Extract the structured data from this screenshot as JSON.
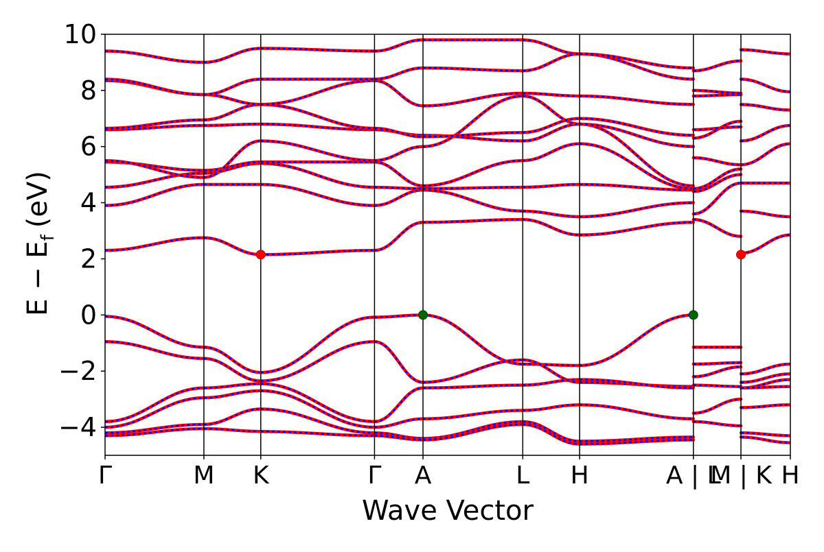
{
  "chart_data": {
    "type": "line",
    "xlabel": "Wave Vector",
    "ylabel_main": "E − E",
    "ylabel_sub": "f",
    "ylabel_unit": "(eV)",
    "ylim": [
      -5,
      10
    ],
    "yticks": [
      {
        "value": -4,
        "label": "−4"
      },
      {
        "value": -2,
        "label": "−2"
      },
      {
        "value": 0,
        "label": "0"
      },
      {
        "value": 2,
        "label": "2"
      },
      {
        "value": 4,
        "label": "4"
      },
      {
        "value": 6,
        "label": "6"
      },
      {
        "value": 8,
        "label": "8"
      },
      {
        "value": 10,
        "label": "10"
      }
    ],
    "xlim": [
      0,
      7.35
    ],
    "kpoints": [
      {
        "label": "Γ",
        "x": 0
      },
      {
        "label": "M",
        "x": 1.06
      },
      {
        "label": "K",
        "x": 1.67
      },
      {
        "label": "Γ",
        "x": 2.89
      },
      {
        "label": "A",
        "x": 3.41
      },
      {
        "label": "L",
        "x": 4.48
      },
      {
        "label": "H",
        "x": 5.09
      },
      {
        "label": "A | L",
        "x": 6.31
      },
      {
        "label": "M | K",
        "x": 6.82
      },
      {
        "label": "H",
        "x": 7.35
      }
    ],
    "segments": [
      {
        "x0": 0,
        "x1": 1.06,
        "bands": [
          [
            -0.05,
            -1.15
          ],
          [
            -0.95,
            -1.55
          ],
          [
            -3.8,
            -2.6
          ],
          [
            -4.0,
            -2.95
          ],
          [
            -4.2,
            -3.9
          ],
          [
            -4.3,
            -4.05
          ],
          [
            2.3,
            2.75
          ],
          [
            3.9,
            4.65
          ],
          [
            4.55,
            5.05
          ],
          [
            5.45,
            5.15
          ],
          [
            5.5,
            4.9
          ],
          [
            6.6,
            6.75
          ],
          [
            6.65,
            6.95
          ],
          [
            8.35,
            7.85
          ],
          [
            8.4,
            7.85
          ],
          [
            9.4,
            9.0
          ]
        ]
      },
      {
        "x0": 1.06,
        "x1": 1.67,
        "bands": [
          [
            -1.15,
            -2.05
          ],
          [
            -1.55,
            -2.35
          ],
          [
            -2.6,
            -2.45
          ],
          [
            -2.95,
            -2.7
          ],
          [
            -3.9,
            -3.35
          ],
          [
            -4.05,
            -4.15
          ],
          [
            2.75,
            2.15
          ],
          [
            4.65,
            4.65
          ],
          [
            5.05,
            5.4
          ],
          [
            5.15,
            5.45
          ],
          [
            4.9,
            6.2
          ],
          [
            6.75,
            6.8
          ],
          [
            6.95,
            7.5
          ],
          [
            7.85,
            7.5
          ],
          [
            7.85,
            8.4
          ],
          [
            9.0,
            9.5
          ]
        ]
      },
      {
        "x0": 1.67,
        "x1": 2.89,
        "bands": [
          [
            -2.05,
            -0.08
          ],
          [
            -2.35,
            -0.95
          ],
          [
            -2.45,
            -3.8
          ],
          [
            -2.7,
            -4.0
          ],
          [
            -3.35,
            -4.2
          ],
          [
            -4.15,
            -4.3
          ],
          [
            2.15,
            2.3
          ],
          [
            4.65,
            3.9
          ],
          [
            5.4,
            4.55
          ],
          [
            5.45,
            5.45
          ],
          [
            6.2,
            5.5
          ],
          [
            6.8,
            6.6
          ],
          [
            7.5,
            6.65
          ],
          [
            7.5,
            8.35
          ],
          [
            8.4,
            8.4
          ],
          [
            9.5,
            9.4
          ]
        ]
      },
      {
        "x0": 2.89,
        "x1": 3.41,
        "bands": [
          [
            -0.08,
            0.0
          ],
          [
            -0.95,
            -2.4
          ],
          [
            -3.8,
            -2.6
          ],
          [
            -4.0,
            -3.7
          ],
          [
            -4.2,
            -4.4
          ],
          [
            -4.3,
            -4.45
          ],
          [
            2.3,
            3.3
          ],
          [
            3.9,
            4.45
          ],
          [
            4.55,
            4.5
          ],
          [
            5.45,
            4.6
          ],
          [
            5.5,
            6.0
          ],
          [
            6.6,
            6.4
          ],
          [
            6.65,
            6.35
          ],
          [
            8.35,
            7.45
          ],
          [
            8.4,
            8.8
          ],
          [
            9.4,
            9.8
          ]
        ]
      },
      {
        "x0": 3.41,
        "x1": 4.48,
        "bands": [
          [
            0.0,
            -1.75
          ],
          [
            -2.4,
            -1.6
          ],
          [
            -2.6,
            -2.5
          ],
          [
            -3.7,
            -3.4
          ],
          [
            -4.4,
            -3.8
          ],
          [
            -4.45,
            -3.9
          ],
          [
            3.3,
            3.4
          ],
          [
            4.45,
            3.7
          ],
          [
            4.5,
            4.55
          ],
          [
            4.6,
            5.5
          ],
          [
            6.0,
            7.8
          ],
          [
            6.4,
            6.2
          ],
          [
            6.35,
            6.5
          ],
          [
            7.45,
            7.9
          ],
          [
            8.8,
            8.7
          ],
          [
            9.8,
            9.8
          ]
        ]
      },
      {
        "x0": 4.48,
        "x1": 5.09,
        "bands": [
          [
            -1.75,
            -1.8
          ],
          [
            -1.6,
            -2.4
          ],
          [
            -2.5,
            -2.3
          ],
          [
            -3.4,
            -3.2
          ],
          [
            -3.8,
            -4.5
          ],
          [
            -3.9,
            -4.6
          ],
          [
            3.4,
            2.85
          ],
          [
            3.7,
            3.5
          ],
          [
            4.55,
            4.65
          ],
          [
            5.5,
            6.1
          ],
          [
            7.8,
            6.8
          ],
          [
            6.2,
            6.8
          ],
          [
            6.5,
            7.0
          ],
          [
            7.9,
            7.8
          ],
          [
            8.7,
            9.3
          ],
          [
            9.8,
            9.3
          ]
        ]
      },
      {
        "x0": 5.09,
        "x1": 6.31,
        "bands": [
          [
            -1.8,
            0.0
          ],
          [
            -2.4,
            -2.55
          ],
          [
            -2.3,
            -2.6
          ],
          [
            -3.2,
            -3.7
          ],
          [
            -4.5,
            -4.35
          ],
          [
            -4.6,
            -4.45
          ],
          [
            2.85,
            3.3
          ],
          [
            3.5,
            4.0
          ],
          [
            4.65,
            4.45
          ],
          [
            6.1,
            4.5
          ],
          [
            6.8,
            4.6
          ],
          [
            6.8,
            6.0
          ],
          [
            7.0,
            6.4
          ],
          [
            7.8,
            7.5
          ],
          [
            9.3,
            8.4
          ],
          [
            9.3,
            8.8
          ]
        ]
      },
      {
        "x0": 6.31,
        "x1": 6.82,
        "bands": [
          [
            -1.15,
            -1.15
          ],
          [
            -1.75,
            -1.7
          ],
          [
            -2.2,
            -1.85
          ],
          [
            -2.5,
            -2.55
          ],
          [
            -3.5,
            -3.0
          ],
          [
            -3.8,
            -3.95
          ],
          [
            3.4,
            2.8
          ],
          [
            3.6,
            4.7
          ],
          [
            4.4,
            5.0
          ],
          [
            4.5,
            5.2
          ],
          [
            5.6,
            5.35
          ],
          [
            6.3,
            6.9
          ],
          [
            6.6,
            6.7
          ],
          [
            7.8,
            7.85
          ],
          [
            8.0,
            7.9
          ],
          [
            8.7,
            9.05
          ]
        ]
      },
      {
        "x0": 6.82,
        "x1": 7.35,
        "bands": [
          [
            -2.1,
            -1.75
          ],
          [
            -2.4,
            -2.1
          ],
          [
            -2.6,
            -2.3
          ],
          [
            -2.6,
            -2.55
          ],
          [
            -3.3,
            -3.2
          ],
          [
            -4.2,
            -4.3
          ],
          [
            -4.35,
            -4.55
          ],
          [
            2.2,
            2.85
          ],
          [
            3.7,
            3.5
          ],
          [
            4.7,
            4.7
          ],
          [
            5.35,
            6.1
          ],
          [
            6.2,
            6.75
          ],
          [
            7.5,
            7.3
          ],
          [
            8.4,
            7.95
          ],
          [
            9.45,
            9.3
          ]
        ]
      }
    ],
    "vbm": [
      {
        "x": 3.41,
        "y": 0.0
      },
      {
        "x": 6.31,
        "y": 0.0
      }
    ],
    "cbm": [
      {
        "x": 1.67,
        "y": 2.15
      },
      {
        "x": 6.82,
        "y": 2.15
      }
    ],
    "colors": {
      "band_main": "#ff0000",
      "band_overlay": "#0000ff",
      "vbm": "#006400",
      "cbm": "#ff0000"
    }
  }
}
